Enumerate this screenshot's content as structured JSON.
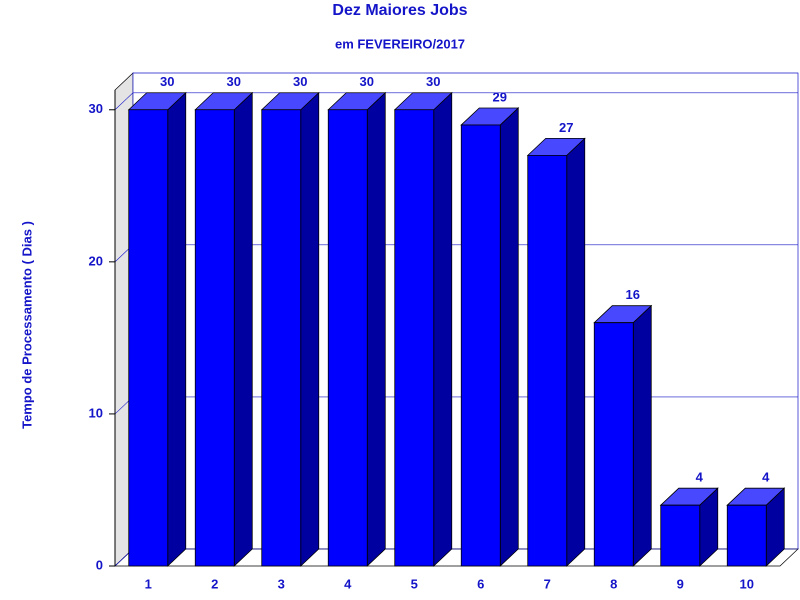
{
  "chart_data": {
    "type": "bar3d",
    "title": "Dez Maiores Jobs",
    "subtitle": "em FEVEREIRO/2017",
    "y_label": "Tempo de Processamento ( Dias )",
    "categories": [
      "1",
      "2",
      "3",
      "4",
      "5",
      "6",
      "7",
      "8",
      "9",
      "10"
    ],
    "values": [
      30,
      30,
      30,
      30,
      30,
      29,
      27,
      16,
      4,
      4
    ],
    "color": "#0000ff",
    "ylim": [
      0,
      31.3
    ],
    "yticks": [
      0,
      10,
      20,
      30
    ],
    "grid": true
  }
}
